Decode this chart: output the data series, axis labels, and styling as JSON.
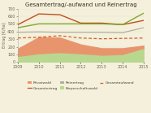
{
  "title": "Gesamtertrag/-aufwand und Reinertrag",
  "ylabel": "Ertrag [€/ha]",
  "years": [
    2009,
    2010,
    2011,
    2012,
    2013,
    2014,
    2015
  ],
  "privatwald_fill": [
    175,
    325,
    320,
    230,
    180,
    180,
    215
  ],
  "koerperschaftswald_fill": [
    65,
    100,
    115,
    100,
    80,
    90,
    170
  ],
  "gesamtertrag_line": [
    490,
    630,
    620,
    510,
    510,
    490,
    545
  ],
  "koerperschaftswald_line": [
    450,
    500,
    500,
    500,
    500,
    490,
    640
  ],
  "gesamtaufwand_line": [
    315,
    325,
    345,
    315,
    305,
    310,
    315
  ],
  "reinertrag_line": [
    390,
    395,
    390,
    390,
    390,
    385,
    450
  ],
  "ylim": [
    0,
    700
  ],
  "yticks": [
    0,
    100,
    200,
    300,
    400,
    500,
    600,
    700
  ],
  "privatwald_color": "#E8956D",
  "koerperschaftswald_color": "#B8D890",
  "gesamtertrag_color": "#C05020",
  "koerperschaftswald_line_color": "#80A830",
  "gesamtaufwand_color": "#D06020",
  "reinertrag_color": "#B0B0A0",
  "bg_color": "#F5F0DC",
  "grid_color": "#DDDDCC"
}
